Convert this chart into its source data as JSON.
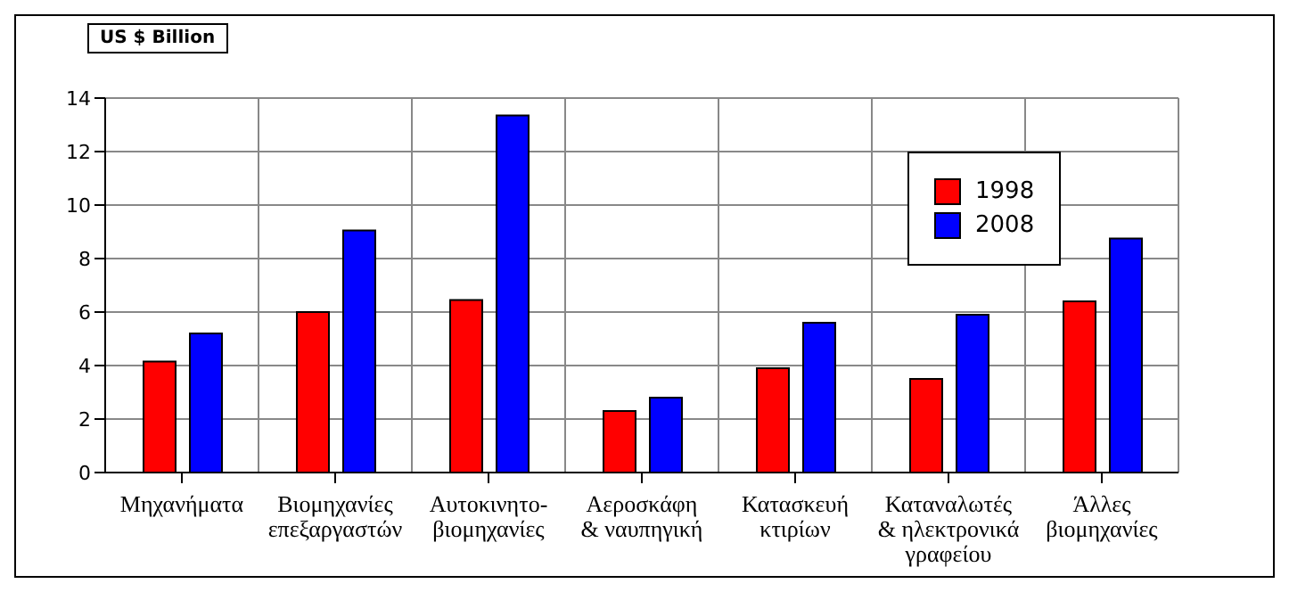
{
  "chart_data": {
    "type": "bar",
    "ylabel": "US $ Billion",
    "categories": [
      "Μηχανήματα",
      "Βιομηχανίες\nεπεξαργαστών",
      "Αυτοκινητο-\nβιομηχανίες",
      "Αεροσκάφη\n& ναυπηγική",
      "Κατασκευή\nκτιρίων",
      "Καταναλωτές\n& ηλεκτρονικά\nγραφείου",
      "Άλλες\nβιομηχανίες"
    ],
    "series": [
      {
        "name": "1998",
        "color": "#ff0000",
        "values": [
          4.15,
          6.0,
          6.45,
          2.3,
          3.9,
          3.5,
          6.4
        ]
      },
      {
        "name": "2008",
        "color": "#0000ff",
        "values": [
          5.2,
          9.05,
          13.35,
          2.8,
          5.6,
          5.9,
          8.75
        ]
      }
    ],
    "ylim": [
      0,
      14
    ],
    "yticks": [
      0,
      2,
      4,
      6,
      8,
      10,
      12,
      14
    ],
    "grid": true,
    "legend": "top right"
  }
}
